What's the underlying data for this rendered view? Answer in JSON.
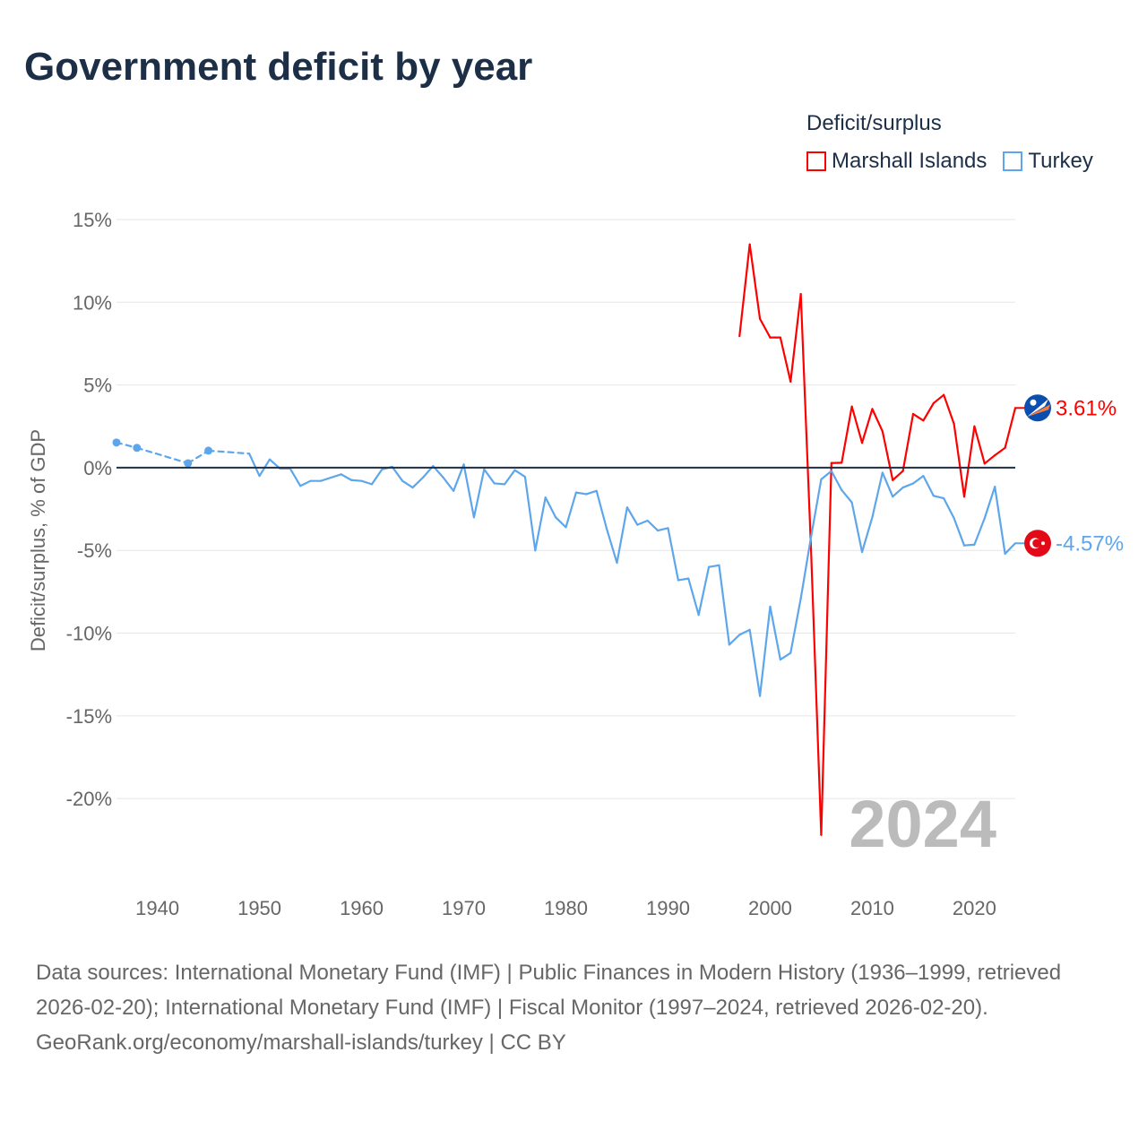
{
  "title": "Government deficit by year",
  "legend": {
    "title": "Deficit/surplus"
  },
  "colors": {
    "marshall": "#ff0000",
    "turkey": "#5ea6ec",
    "zero": "#1d2f47",
    "grid": "#e6e6e6",
    "tick": "#666666",
    "year_watermark": "#bbbbbb"
  },
  "chart_data": {
    "type": "line",
    "title": "Government deficit by year",
    "xlabel": "",
    "ylabel": "Deficit/surplus, % of GDP",
    "xlim": [
      1936,
      2024
    ],
    "ylim": [
      -24,
      15
    ],
    "x_ticks": [
      1940,
      1950,
      1960,
      1970,
      1980,
      1990,
      2000,
      2010,
      2020
    ],
    "y_ticks": [
      15,
      10,
      5,
      0,
      -5,
      -10,
      -15,
      -20
    ],
    "y_tick_labels": [
      "15%",
      "10%",
      "5%",
      "0%",
      "-5%",
      "-10%",
      "-15%",
      "-20%"
    ],
    "grid": true,
    "legend_placement": "top-right",
    "year_label": "2024",
    "series": [
      {
        "name": "Marshall Islands",
        "key": "marshall",
        "end_label": "3.61%",
        "flag": "marshall-islands-flag",
        "x": [
          1997,
          1998,
          1999,
          2000,
          2001,
          2002,
          2003,
          2004,
          2005,
          2006,
          2007,
          2008,
          2009,
          2010,
          2011,
          2012,
          2013,
          2014,
          2015,
          2016,
          2017,
          2018,
          2019,
          2020,
          2021,
          2022,
          2023,
          2024
        ],
        "y": [
          7.95,
          13.5,
          9.0,
          7.87,
          7.87,
          5.2,
          10.5,
          -4.9,
          -22.2,
          0.28,
          0.3,
          3.7,
          1.5,
          3.55,
          2.2,
          -0.75,
          -0.2,
          3.25,
          2.85,
          3.9,
          4.4,
          2.65,
          -1.75,
          2.5,
          0.25,
          0.75,
          1.2,
          3.61
        ]
      },
      {
        "name": "Turkey",
        "key": "turkey",
        "end_label": "-4.57%",
        "flag": "turkey-flag",
        "x": [
          1936,
          1938,
          1943,
          1945,
          1949,
          1950,
          1951,
          1952,
          1953,
          1954,
          1955,
          1956,
          1957,
          1958,
          1959,
          1960,
          1961,
          1962,
          1963,
          1964,
          1965,
          1966,
          1967,
          1968,
          1969,
          1970,
          1971,
          1972,
          1973,
          1974,
          1975,
          1976,
          1977,
          1978,
          1979,
          1980,
          1981,
          1982,
          1983,
          1984,
          1985,
          1986,
          1987,
          1988,
          1989,
          1990,
          1991,
          1992,
          1993,
          1994,
          1995,
          1996,
          1997,
          1998,
          1999,
          2000,
          2001,
          2002,
          2003,
          2004,
          2005,
          2006,
          2007,
          2008,
          2009,
          2010,
          2011,
          2012,
          2013,
          2014,
          2015,
          2016,
          2017,
          2018,
          2019,
          2020,
          2021,
          2022,
          2023,
          2024
        ],
        "y": [
          1.52,
          1.2,
          0.27,
          1.03,
          0.85,
          -0.5,
          0.5,
          -0.05,
          -0.05,
          -1.1,
          -0.8,
          -0.8,
          -0.6,
          -0.4,
          -0.75,
          -0.8,
          -1.0,
          -0.1,
          0.05,
          -0.8,
          -1.2,
          -0.6,
          0.1,
          -0.6,
          -1.4,
          0.2,
          -3.0,
          -0.1,
          -0.95,
          -1.0,
          -0.15,
          -0.55,
          -5.0,
          -1.8,
          -3.0,
          -3.6,
          -1.5,
          -1.6,
          -1.4,
          -3.7,
          -5.75,
          -2.4,
          -3.45,
          -3.2,
          -3.8,
          -3.65,
          -6.8,
          -6.7,
          -8.9,
          -6.0,
          -5.9,
          -10.7,
          -10.1,
          -9.8,
          -13.8,
          -8.4,
          -11.6,
          -11.2,
          -7.9,
          -4.2,
          -0.7,
          -0.2,
          -1.35,
          -2.1,
          -5.1,
          -3.0,
          -0.3,
          -1.75,
          -1.2,
          -0.95,
          -0.5,
          -1.7,
          -1.85,
          -3.05,
          -4.7,
          -4.65,
          -3.05,
          -1.15,
          -5.2,
          -4.57
        ]
      }
    ]
  },
  "footer": {
    "sources": "Data sources: International Monetary Fund (IMF) | Public Finances in Modern History (1936–1999, retrieved 2026-02-20); International Monetary Fund (IMF) | Fiscal Monitor (1997–2024, retrieved 2026-02-20).",
    "credit": "GeoRank.org/economy/marshall-islands/turkey | CC BY"
  }
}
